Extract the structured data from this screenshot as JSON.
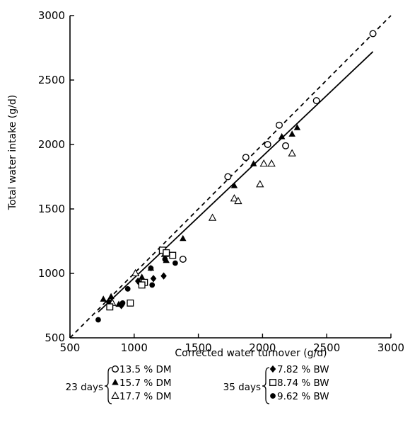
{
  "chart_data": {
    "type": "scatter",
    "title": "",
    "xlabel": "Corrected water turnover (g/d)",
    "ylabel": "Total water intake (g/d)",
    "xlim": [
      500,
      3000
    ],
    "ylim": [
      500,
      3000
    ],
    "xticks": [
      "500",
      "1000",
      "1500",
      "2000",
      "2500",
      "3000"
    ],
    "yticks": [
      "500",
      "1000",
      "1500",
      "2000",
      "2500",
      "3000"
    ],
    "grid": false,
    "series": [
      {
        "name": "13.5 % DM",
        "group": "23 days",
        "marker": "open-circle",
        "points": [
          [
            2860,
            2860
          ],
          [
            2420,
            2340
          ],
          [
            2130,
            2150
          ],
          [
            2040,
            2000
          ],
          [
            1870,
            1900
          ],
          [
            1730,
            1750
          ],
          [
            2180,
            1990
          ],
          [
            1380,
            1110
          ]
        ]
      },
      {
        "name": "15.7 % DM",
        "group": "23 days",
        "marker": "filled-triangle",
        "points": [
          [
            2270,
            2130
          ],
          [
            2230,
            2080
          ],
          [
            2150,
            2060
          ],
          [
            1930,
            1850
          ],
          [
            1780,
            1680
          ],
          [
            1380,
            1270
          ],
          [
            1130,
            1040
          ],
          [
            1060,
            970
          ],
          [
            760,
            800
          ],
          [
            820,
            820
          ],
          [
            880,
            760
          ],
          [
            1250,
            1100
          ]
        ]
      },
      {
        "name": "17.7 % DM",
        "group": "23 days",
        "marker": "open-triangle",
        "points": [
          [
            2010,
            1850
          ],
          [
            2070,
            1850
          ],
          [
            2230,
            1930
          ],
          [
            1980,
            1690
          ],
          [
            1780,
            1580
          ],
          [
            1810,
            1560
          ],
          [
            1610,
            1430
          ],
          [
            1010,
            1000
          ],
          [
            830,
            770
          ],
          [
            1240,
            1150
          ]
        ]
      },
      {
        "name": "7.82 % BW",
        "group": "35 days",
        "marker": "filled-diamond",
        "points": [
          [
            800,
            780
          ],
          [
            900,
            750
          ],
          [
            1030,
            940
          ],
          [
            1150,
            960
          ],
          [
            1230,
            980
          ]
        ]
      },
      {
        "name": "8.74 % BW",
        "group": "35 days",
        "marker": "open-square",
        "points": [
          [
            1220,
            1180
          ],
          [
            1300,
            1140
          ],
          [
            1080,
            930
          ],
          [
            1060,
            910
          ],
          [
            970,
            770
          ],
          [
            810,
            740
          ],
          [
            1250,
            1160
          ]
        ]
      },
      {
        "name": "9.62 % BW",
        "group": "35 days",
        "marker": "filled-circle",
        "points": [
          [
            720,
            640
          ],
          [
            910,
            770
          ],
          [
            950,
            880
          ],
          [
            1140,
            910
          ],
          [
            1320,
            1080
          ],
          [
            1240,
            1110
          ],
          [
            1130,
            1040
          ]
        ]
      }
    ],
    "lines": [
      {
        "style": "dashed",
        "from": [
          500,
          500
        ],
        "to": [
          3000,
          3000
        ]
      },
      {
        "style": "solid",
        "from": [
          720,
          700
        ],
        "to": [
          2860,
          2720
        ]
      }
    ],
    "legend": {
      "placement": "bottom",
      "groups": [
        {
          "label": "23 days",
          "items": [
            "13.5 % DM",
            "15.7 % DM",
            "17.7 % DM"
          ]
        },
        {
          "label": "35 days",
          "items": [
            "7.82 % BW",
            "8.74 % BW",
            "9.62 % BW"
          ]
        }
      ]
    }
  }
}
